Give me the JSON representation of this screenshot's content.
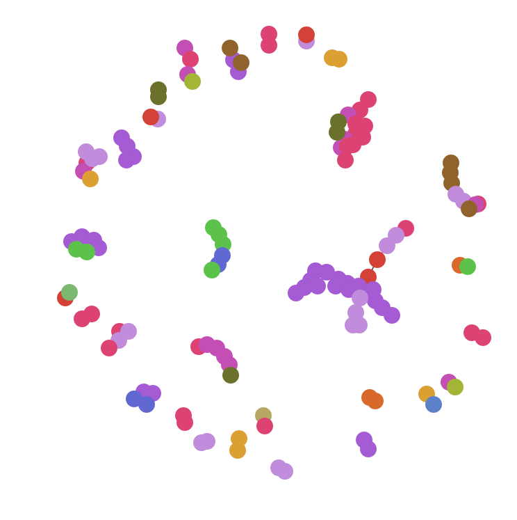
{
  "colors": {
    "background": "#ffffff",
    "edge": "#333333",
    "pink_red": "#dc4272",
    "magenta": "#c44fb4",
    "red": "#d44136",
    "purple": "#a55bd3",
    "lavender": "#c08cdb",
    "orange": "#dc9f32",
    "brown": "#91632c",
    "olive": "#6b702a",
    "lime": "#a3b437",
    "green": "#5cc24b",
    "blue": "#6168d1",
    "steel_blue": "#5b82c8",
    "burnt_orange": "#d8692b",
    "khaki": "#b7a964",
    "sage": "#7bb870"
  },
  "clusters": [
    {
      "id": "c1",
      "nodes": [
        [
          "magenta",
          266,
          69
        ],
        [
          "pink_red",
          274,
          85
        ],
        [
          "magenta",
          270,
          107
        ],
        [
          "lime",
          277,
          117
        ]
      ]
    },
    {
      "id": "c2",
      "nodes": [
        [
          "purple",
          336,
          86
        ],
        [
          "purple",
          343,
          103
        ],
        [
          "brown",
          331,
          69
        ],
        [
          "brown",
          347,
          90
        ]
      ]
    },
    {
      "id": "c3",
      "nodes": [
        [
          "pink_red",
          387,
          49
        ],
        [
          "pink_red",
          387,
          65
        ]
      ]
    },
    {
      "id": "c4",
      "nodes": [
        [
          "lavender",
          441,
          59
        ],
        [
          "red",
          441,
          50
        ]
      ]
    },
    {
      "id": "c5",
      "nodes": [
        [
          "orange",
          478,
          83
        ],
        [
          "orange",
          488,
          85
        ]
      ]
    },
    {
      "id": "c6",
      "nodes": [
        [
          "olive",
          228,
          129
        ],
        [
          "olive",
          228,
          139
        ]
      ]
    },
    {
      "id": "c7",
      "nodes": [
        [
          "lavender",
          227,
          171
        ],
        [
          "red",
          217,
          168
        ]
      ]
    },
    {
      "id": "c8",
      "nodes": [
        [
          "purple",
          175,
          198
        ],
        [
          "purple",
          183,
          210
        ],
        [
          "purple",
          192,
          225
        ],
        [
          "purple",
          182,
          230
        ]
      ]
    },
    {
      "id": "c9",
      "nodes": [
        [
          "pink_red",
          125,
          234
        ],
        [
          "magenta",
          120,
          246
        ],
        [
          "lavender",
          124,
          218
        ],
        [
          "lavender",
          133,
          228
        ],
        [
          "lavender",
          143,
          225
        ],
        [
          "orange",
          130,
          257
        ]
      ]
    },
    {
      "id": "c10",
      "nodes": [
        [
          "pink_red",
          530,
          143
        ],
        [
          "pink_red",
          518,
          158
        ],
        [
          "magenta",
          501,
          165
        ],
        [
          "pink_red",
          512,
          178
        ],
        [
          "pink_red",
          525,
          181
        ],
        [
          "pink_red",
          512,
          192
        ],
        [
          "pink_red",
          522,
          197
        ],
        [
          "magenta",
          496,
          200
        ],
        [
          "magenta",
          491,
          212
        ],
        [
          "pink_red",
          508,
          208
        ],
        [
          "pink_red",
          500,
          210
        ],
        [
          "pink_red",
          497,
          230
        ],
        [
          "olive",
          487,
          175
        ],
        [
          "olive",
          485,
          190
        ]
      ]
    },
    {
      "id": "c11",
      "nodes": [
        [
          "brown",
          649,
          234
        ],
        [
          "brown",
          648,
          248
        ],
        [
          "brown",
          650,
          263
        ],
        [
          "lavender",
          656,
          279
        ],
        [
          "lavender",
          667,
          289
        ],
        [
          "pink_red",
          688,
          293
        ],
        [
          "magenta",
          684,
          294
        ],
        [
          "brown",
          675,
          300
        ]
      ]
    },
    {
      "id": "c12",
      "nodes": [
        [
          "green",
          307,
          327
        ],
        [
          "green",
          315,
          337
        ],
        [
          "green",
          321,
          351
        ],
        [
          "blue",
          320,
          367
        ],
        [
          "blue",
          314,
          380
        ],
        [
          "green",
          305,
          388
        ]
      ]
    },
    {
      "id": "c13",
      "nodes": [
        [
          "purple",
          103,
          347
        ],
        [
          "purple",
          118,
          340
        ],
        [
          "purple",
          135,
          345
        ],
        [
          "purple",
          142,
          356
        ],
        [
          "green",
          110,
          358
        ],
        [
          "green",
          125,
          362
        ]
      ]
    },
    {
      "id": "c15",
      "nodes": [
        [
          "burnt_orange",
          662,
          381
        ],
        [
          "green",
          673,
          383
        ]
      ]
    },
    {
      "id": "c16",
      "nodes": [
        [
          "red",
          94,
          428
        ],
        [
          "sage",
          100,
          420
        ]
      ]
    },
    {
      "id": "c17",
      "nodes": [
        [
          "pink_red",
          118,
          458
        ],
        [
          "pink_red",
          132,
          451
        ]
      ]
    },
    {
      "id": "c18",
      "nodes": [
        [
          "pink_red",
          172,
          476
        ],
        [
          "lavender",
          185,
          476
        ],
        [
          "lavender",
          171,
          489
        ],
        [
          "pink_red",
          157,
          500
        ]
      ]
    },
    {
      "id": "c19",
      "nodes": [
        [
          "pink_red",
          679,
          478
        ],
        [
          "pink_red",
          695,
          485
        ]
      ]
    },
    {
      "id": "c20",
      "nodes": [
        [
          "pink_red",
          286,
          498
        ],
        [
          "magenta",
          298,
          495
        ],
        [
          "magenta",
          312,
          500
        ],
        [
          "magenta",
          323,
          512
        ],
        [
          "magenta",
          330,
          524
        ],
        [
          "olive",
          332,
          539
        ]
      ]
    },
    {
      "id": "c21",
      "nodes": [
        [
          "magenta",
          646,
          549
        ],
        [
          "lime",
          655,
          556
        ]
      ]
    },
    {
      "id": "c22",
      "nodes": [
        [
          "orange",
          614,
          566
        ],
        [
          "steel_blue",
          624,
          581
        ]
      ]
    },
    {
      "id": "c23",
      "nodes": [
        [
          "burnt_orange",
          532,
          571
        ],
        [
          "burnt_orange",
          540,
          576
        ]
      ]
    },
    {
      "id": "c24",
      "nodes": [
        [
          "purple",
          207,
          563
        ],
        [
          "purple",
          220,
          565
        ],
        [
          "blue",
          193,
          573
        ],
        [
          "blue",
          211,
          581
        ]
      ]
    },
    {
      "id": "c25",
      "nodes": [
        [
          "pink_red",
          264,
          597
        ],
        [
          "pink_red",
          266,
          607
        ]
      ]
    },
    {
      "id": "c26",
      "nodes": [
        [
          "khaki",
          379,
          597
        ],
        [
          "pink_red",
          381,
          612
        ]
      ]
    },
    {
      "id": "c27",
      "nodes": [
        [
          "lavender",
          290,
          636
        ],
        [
          "lavender",
          298,
          634
        ]
      ]
    },
    {
      "id": "c28",
      "nodes": [
        [
          "orange",
          344,
          630
        ],
        [
          "orange",
          342,
          647
        ]
      ]
    },
    {
      "id": "c29",
      "nodes": [
        [
          "purple",
          524,
          632
        ],
        [
          "purple",
          530,
          645
        ]
      ]
    },
    {
      "id": "c30",
      "nodes": [
        [
          "lavender",
          401,
          672
        ],
        [
          "lavender",
          410,
          677
        ]
      ]
    }
  ],
  "tree": {
    "nodes": [
      [
        "pink_red",
        584,
        328
      ],
      [
        "lavender",
        570,
        338
      ],
      [
        "lavender",
        557,
        353
      ],
      [
        "red",
        543,
        373
      ],
      [
        "red",
        530,
        398
      ],
      [
        "purple",
        454,
        389
      ],
      [
        "purple",
        470,
        391
      ],
      [
        "purple",
        447,
        403
      ],
      [
        "purple",
        438,
        413
      ],
      [
        "purple",
        426,
        421
      ],
      [
        "purple",
        457,
        411
      ],
      [
        "purple",
        487,
        401
      ],
      [
        "purple",
        500,
        407
      ],
      [
        "purple",
        483,
        411
      ],
      [
        "purple",
        502,
        416
      ],
      [
        "purple",
        516,
        411
      ],
      [
        "purple",
        537,
        416
      ],
      [
        "purple",
        540,
        432
      ],
      [
        "purple",
        550,
        442
      ],
      [
        "purple",
        564,
        453
      ],
      [
        "lavender",
        518,
        428
      ],
      [
        "lavender",
        512,
        449
      ],
      [
        "lavender",
        517,
        467
      ],
      [
        "lavender",
        508,
        467
      ]
    ],
    "edges": [
      [
        0,
        1
      ],
      [
        1,
        2
      ],
      [
        2,
        3
      ],
      [
        3,
        4
      ],
      [
        4,
        15
      ],
      [
        15,
        12
      ],
      [
        12,
        11
      ],
      [
        11,
        6
      ],
      [
        6,
        5
      ],
      [
        5,
        7
      ],
      [
        7,
        8
      ],
      [
        8,
        9
      ],
      [
        7,
        10
      ],
      [
        11,
        13
      ],
      [
        12,
        14
      ],
      [
        15,
        16
      ],
      [
        16,
        17
      ],
      [
        17,
        18
      ],
      [
        18,
        19
      ],
      [
        15,
        20
      ],
      [
        20,
        21
      ],
      [
        21,
        22
      ],
      [
        21,
        23
      ]
    ]
  }
}
